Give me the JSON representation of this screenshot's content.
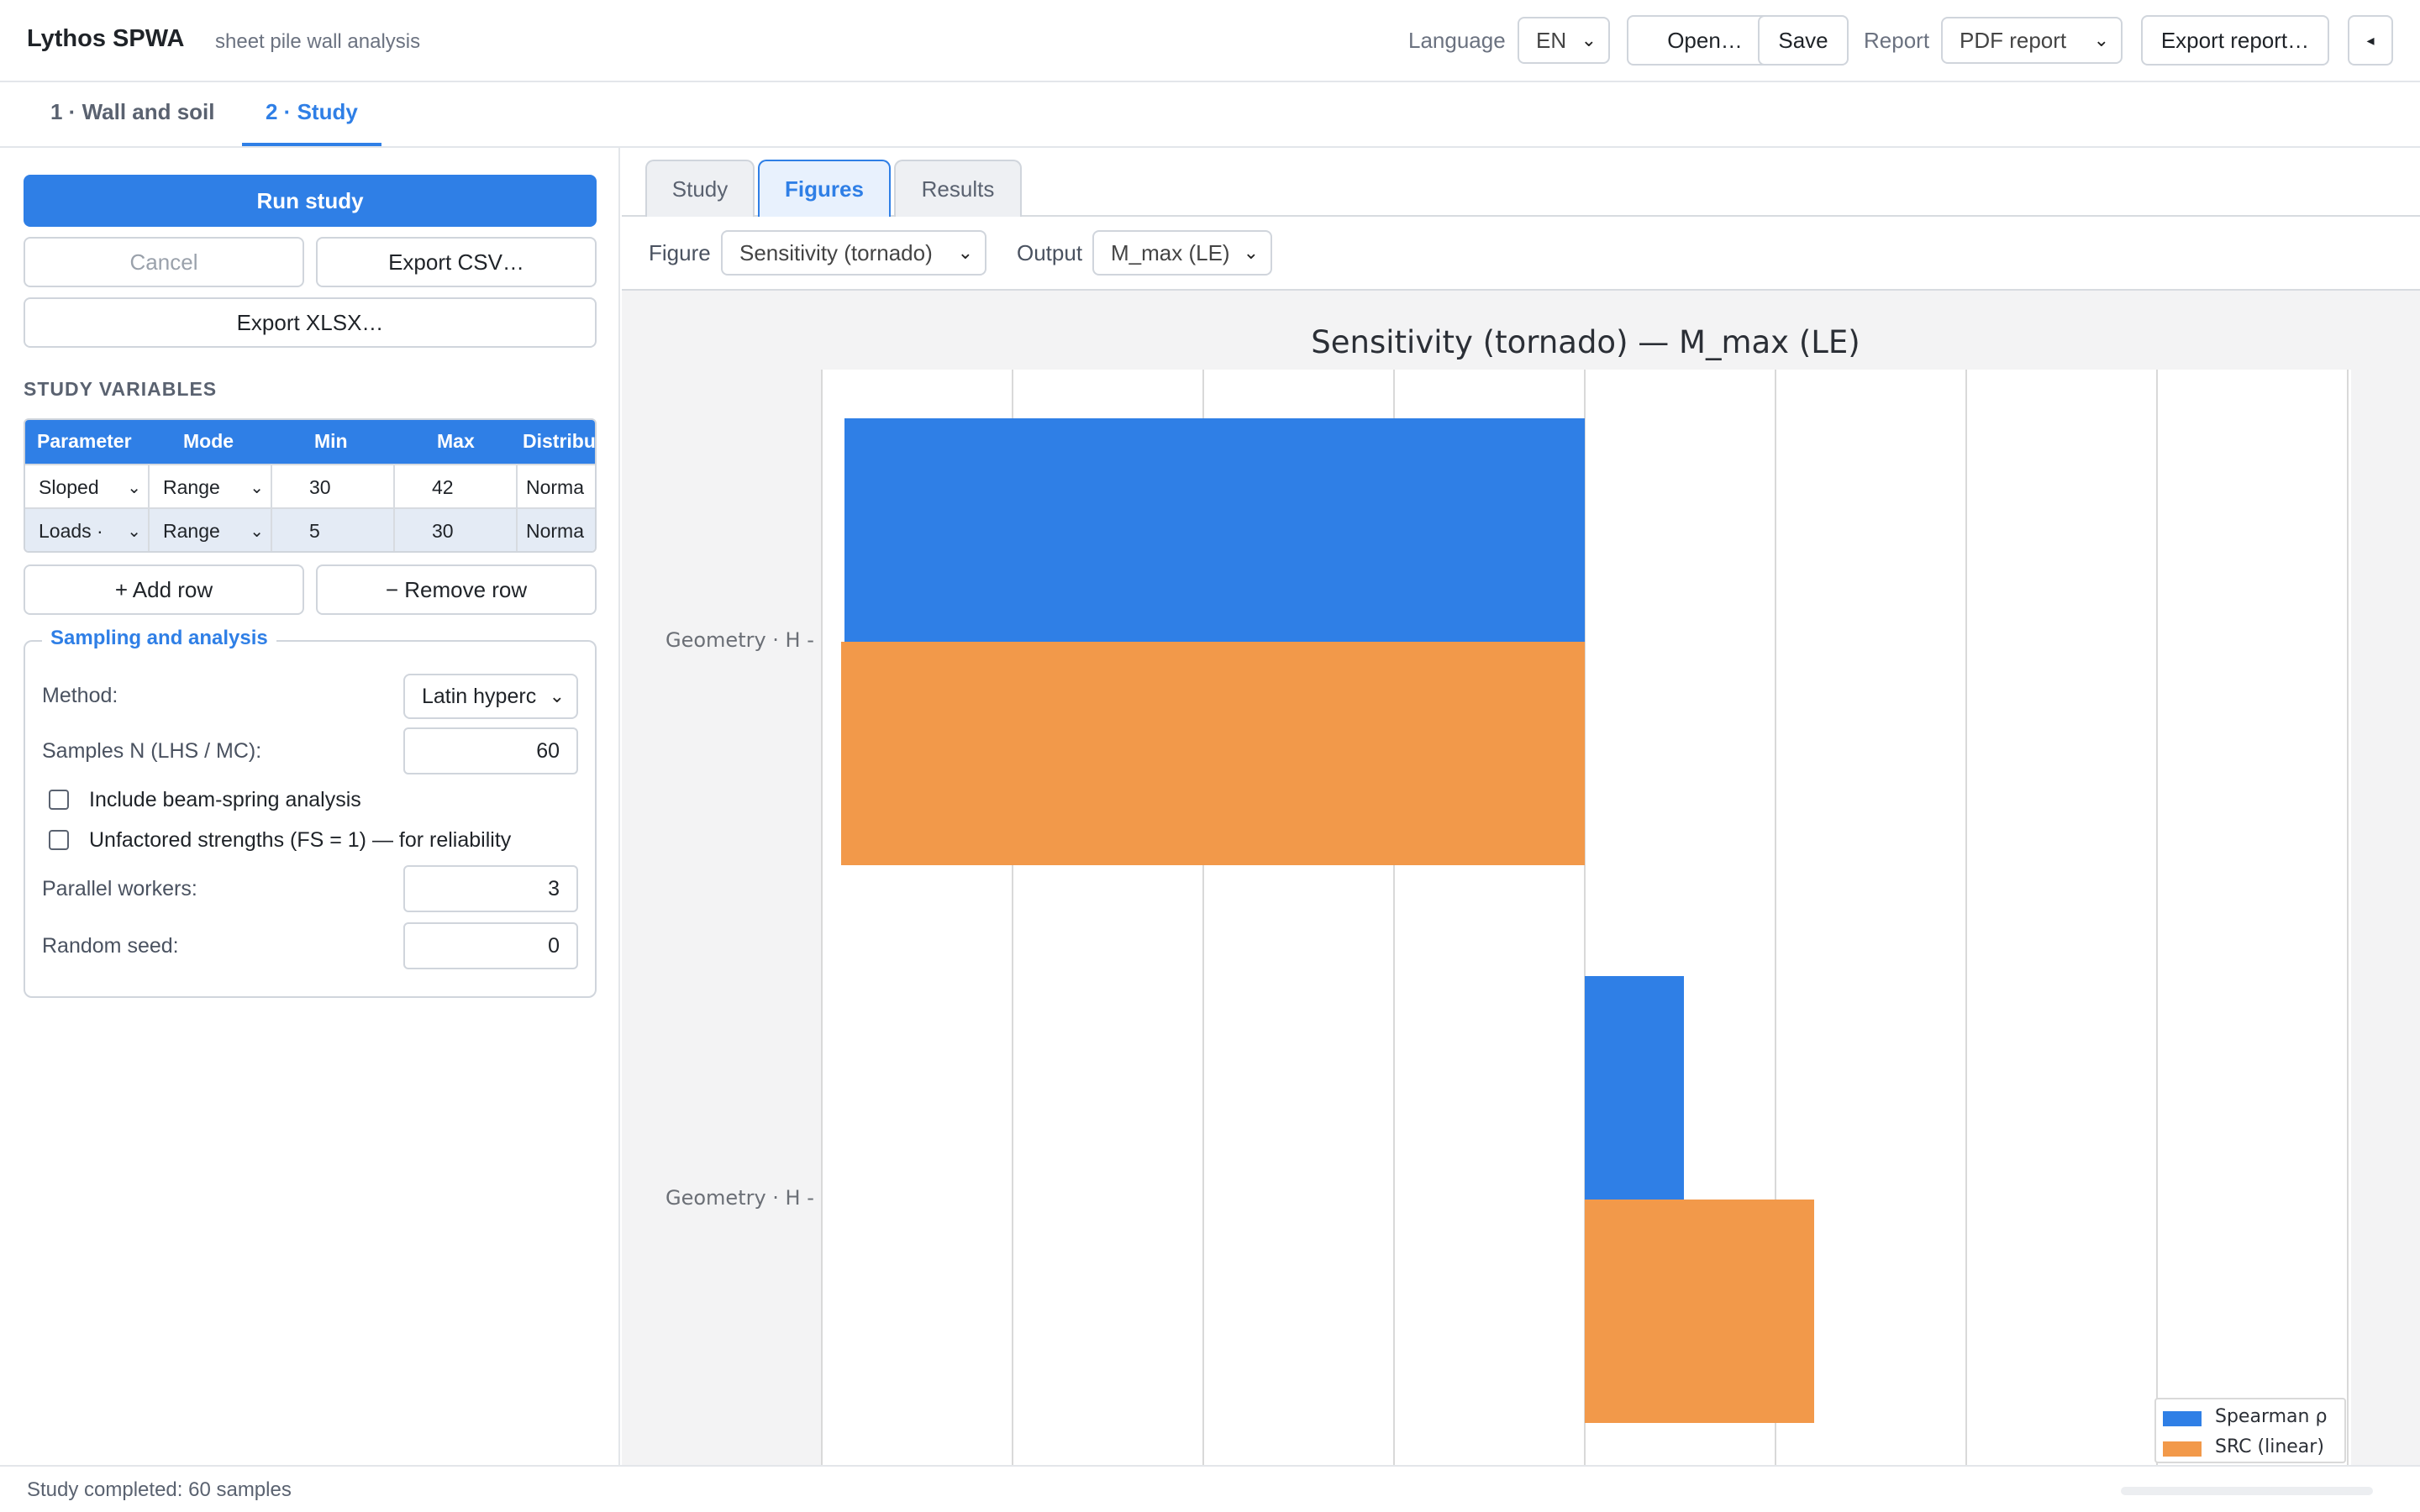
{
  "header": {
    "app_title": "Lythos SPWA",
    "app_subtitle": "sheet pile wall analysis",
    "language_label": "Language",
    "language_value": "EN",
    "open_label": "Open…",
    "save_label": "Save",
    "report_label": "Report",
    "report_value": "PDF report",
    "export_report_label": "Export report…",
    "collapse_icon": "caret-left-icon"
  },
  "main_tabs": [
    {
      "label": "1 · Wall and soil",
      "active": false
    },
    {
      "label": "2 · Study",
      "active": true
    }
  ],
  "left_panel": {
    "run_label": "Run study",
    "cancel_label": "Cancel",
    "export_csv_label": "Export CSV…",
    "export_xlsx_label": "Export XLSX…",
    "section_title": "STUDY VARIABLES",
    "table": {
      "columns": [
        "Parameter",
        "Mode",
        "Min",
        "Max",
        "Distribu"
      ],
      "rows": [
        {
          "parameter": "Sloped",
          "mode": "Range",
          "min": "30",
          "max": "42",
          "distribution": "Norma"
        },
        {
          "parameter": "Loads ·",
          "mode": "Range",
          "min": "5",
          "max": "30",
          "distribution": "Norma"
        }
      ]
    },
    "add_row_label": "+ Add row",
    "remove_row_label": "− Remove row",
    "sampling": {
      "title": "Sampling and analysis",
      "method_label": "Method:",
      "method_value": "Latin hyperc",
      "samples_label": "Samples N (LHS / MC):",
      "samples_value": "60",
      "beam_spring_label": "Include beam-spring analysis",
      "beam_spring_checked": false,
      "unfactored_label": "Unfactored strengths (FS = 1) — for reliability",
      "unfactored_checked": false,
      "workers_label": "Parallel workers:",
      "workers_value": "3",
      "seed_label": "Random seed:",
      "seed_value": "0"
    }
  },
  "sub_tabs": [
    {
      "label": "Study",
      "active": false
    },
    {
      "label": "Figures",
      "active": true
    },
    {
      "label": "Results",
      "active": false
    }
  ],
  "figure_bar": {
    "figure_label": "Figure",
    "figure_value": "Sensitivity (tornado)",
    "output_label": "Output",
    "output_value": "M_max (LE)"
  },
  "chart_data": {
    "type": "bar",
    "orientation": "horizontal",
    "title": "Sensitivity (tornado) — M_max (LE)",
    "categories": [
      "Geometry · H",
      "Geometry · H"
    ],
    "series": [
      {
        "name": "Spearman ρ",
        "color": "#2f7fe6",
        "values": [
          -0.97,
          0.13
        ]
      },
      {
        "name": "SRC (linear)",
        "color": "#f2994a",
        "values": [
          -0.975,
          0.3
        ]
      }
    ],
    "xlim": [
      -1.0,
      1.0
    ],
    "grid": true,
    "legend_position": "bottom-right"
  },
  "status": {
    "text": "Study completed: 60 samples"
  }
}
